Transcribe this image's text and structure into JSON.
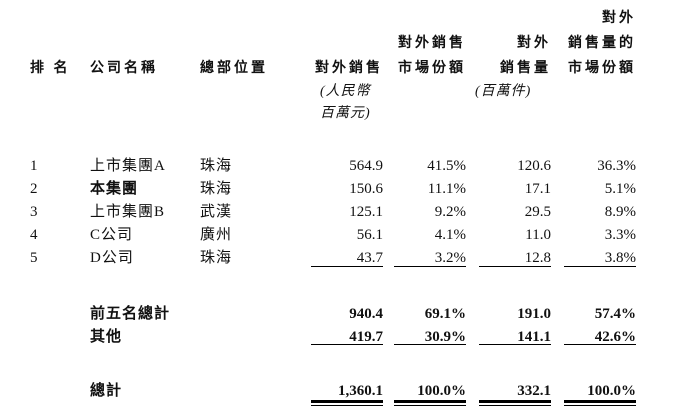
{
  "colors": {
    "background": "#ffffff",
    "text": "#111111",
    "rule": "#000000"
  },
  "table": {
    "header": {
      "rank": "排 名",
      "company": "公司名稱",
      "location": "總部位置",
      "sales": {
        "l1": "對外銷售",
        "s1": "(人民幣",
        "s2": "百萬元)"
      },
      "sales_share": {
        "l1": "對外銷售",
        "l2": "市場份額"
      },
      "volume": {
        "l1": "對外",
        "l2": "銷售量",
        "s1": "(百萬件)"
      },
      "volume_share": {
        "l1": "對外",
        "l2": "銷售量的",
        "l3": "市場份額"
      }
    },
    "rows": [
      {
        "rank": "1",
        "company": "上市集團A",
        "location": "珠海",
        "sales": "564.9",
        "sales_share": "41.5%",
        "volume": "120.6",
        "volume_share": "36.3%"
      },
      {
        "rank": "2",
        "company": "本集團",
        "location": "珠海",
        "sales": "150.6",
        "sales_share": "11.1%",
        "volume": "17.1",
        "volume_share": "5.1%"
      },
      {
        "rank": "3",
        "company": "上市集團B",
        "location": "武漢",
        "sales": "125.1",
        "sales_share": "9.2%",
        "volume": "29.5",
        "volume_share": "8.9%"
      },
      {
        "rank": "4",
        "company": "C公司",
        "location": "廣州",
        "sales": "56.1",
        "sales_share": "4.1%",
        "volume": "11.0",
        "volume_share": "3.3%"
      },
      {
        "rank": "5",
        "company": "D公司",
        "location": "珠海",
        "sales": "43.7",
        "sales_share": "3.2%",
        "volume": "12.8",
        "volume_share": "3.8%"
      }
    ],
    "summary": [
      {
        "label": "前五名總計",
        "sales": "940.4",
        "sales_share": "69.1%",
        "volume": "191.0",
        "volume_share": "57.4%"
      },
      {
        "label": "其他",
        "sales": "419.7",
        "sales_share": "30.9%",
        "volume": "141.1",
        "volume_share": "42.6%"
      }
    ],
    "total": {
      "label": "總計",
      "sales": "1,360.1",
      "sales_share": "100.0%",
      "volume": "332.1",
      "volume_share": "100.0%"
    }
  }
}
